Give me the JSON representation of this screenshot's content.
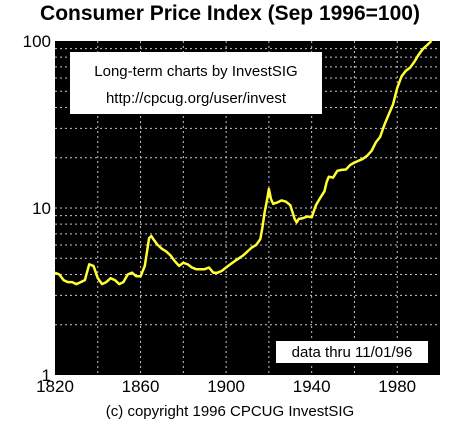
{
  "chart_data": {
    "type": "line",
    "title": "Consumer Price Index (Sep 1996=100)",
    "xlabel": "",
    "ylabel": "",
    "y_scale": "log",
    "xlim": [
      1820,
      2000
    ],
    "ylim": [
      1,
      100
    ],
    "x_ticks": [
      1820,
      1860,
      1900,
      1940,
      1980
    ],
    "x_tick_labels": [
      "1820",
      "1860",
      "1900",
      "1940",
      "1980"
    ],
    "y_ticks": [
      1,
      10,
      100
    ],
    "y_tick_labels": [
      "1",
      "10",
      "100"
    ],
    "grid": true,
    "background": "#000000",
    "line_color": "#ffff33",
    "series": [
      {
        "x": [
          1820,
          1822,
          1824,
          1826,
          1828,
          1830,
          1832,
          1834,
          1836,
          1838,
          1840,
          1842,
          1844,
          1846,
          1848,
          1850,
          1852,
          1854,
          1856,
          1858,
          1860,
          1862,
          1864,
          1865,
          1866,
          1868,
          1870,
          1872,
          1874,
          1876,
          1878,
          1880,
          1882,
          1884,
          1886,
          1888,
          1890,
          1892,
          1894,
          1896,
          1898,
          1900,
          1902,
          1904,
          1906,
          1908,
          1910,
          1912,
          1914,
          1916,
          1917,
          1918,
          1919,
          1920,
          1921,
          1922,
          1924,
          1926,
          1928,
          1930,
          1932,
          1933,
          1934,
          1936,
          1938,
          1940,
          1942,
          1944,
          1946,
          1947,
          1948,
          1950,
          1952,
          1954,
          1956,
          1958,
          1960,
          1962,
          1964,
          1966,
          1968,
          1970,
          1972,
          1974,
          1976,
          1978,
          1980,
          1982,
          1984,
          1986,
          1988,
          1990,
          1992,
          1994,
          1996
        ],
        "y": [
          4.1,
          4.0,
          3.7,
          3.6,
          3.6,
          3.5,
          3.6,
          3.7,
          4.6,
          4.5,
          3.8,
          3.5,
          3.6,
          3.8,
          3.7,
          3.5,
          3.6,
          4.0,
          4.1,
          3.9,
          3.9,
          4.5,
          6.6,
          6.8,
          6.5,
          6.0,
          5.7,
          5.5,
          5.2,
          4.8,
          4.5,
          4.7,
          4.6,
          4.4,
          4.3,
          4.3,
          4.3,
          4.4,
          4.1,
          4.1,
          4.2,
          4.4,
          4.6,
          4.8,
          5.0,
          5.2,
          5.5,
          5.8,
          6.0,
          6.5,
          7.7,
          9.4,
          11.0,
          13.0,
          11.3,
          10.6,
          10.8,
          11.1,
          10.9,
          10.4,
          8.6,
          8.2,
          8.6,
          8.7,
          8.9,
          8.8,
          10.4,
          11.5,
          12.6,
          14.3,
          15.4,
          15.2,
          16.7,
          16.9,
          17.0,
          18.1,
          18.7,
          19.2,
          19.7,
          20.6,
          22.0,
          24.7,
          26.6,
          31.5,
          36.3,
          41.5,
          52.2,
          61.3,
          66.3,
          69.2,
          75.0,
          82.8,
          89.5,
          94.6,
          100.0
        ]
      }
    ]
  },
  "info_box": {
    "line1": "Long-term charts by InvestSIG",
    "line2": "http://cpcug.org/user/invest"
  },
  "data_note": "data thru 11/01/96",
  "footer": "(c) copyright 1996 CPCUG InvestSIG"
}
